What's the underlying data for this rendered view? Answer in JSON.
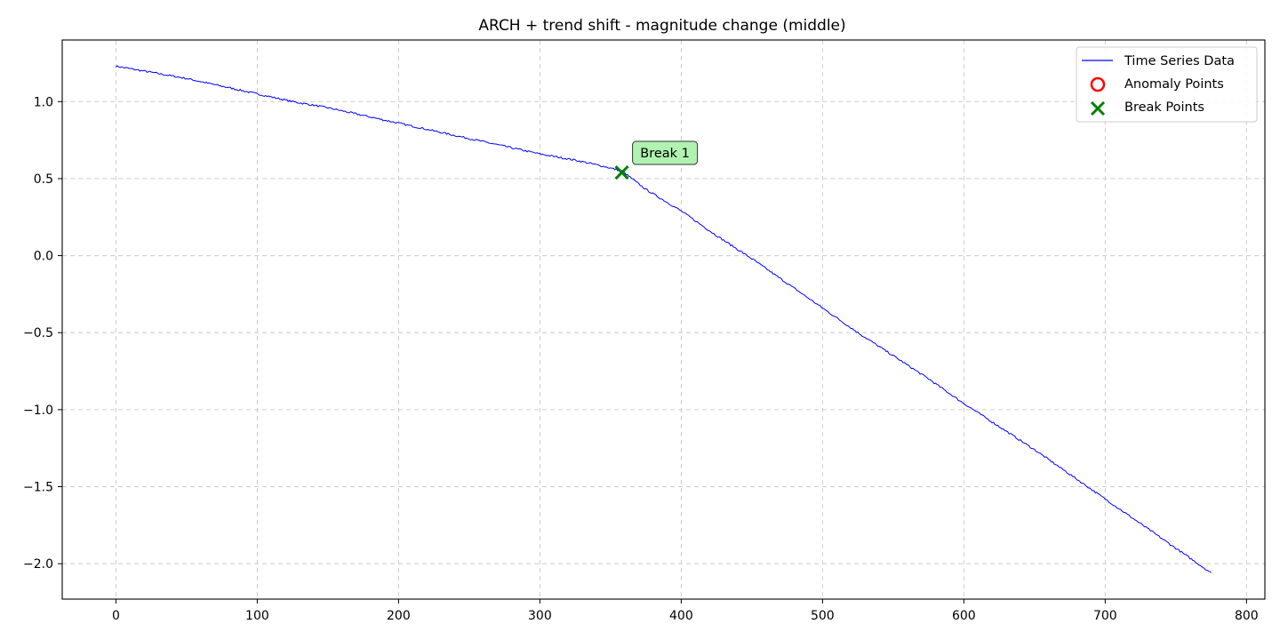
{
  "chart_data": {
    "type": "line",
    "title": "ARCH + trend shift - magnitude change (middle)",
    "xlabel": "",
    "ylabel": "",
    "xlim": [
      -38,
      813
    ],
    "ylim": [
      -2.23,
      1.4
    ],
    "x_ticks": [
      0,
      100,
      200,
      300,
      400,
      500,
      600,
      700,
      800
    ],
    "x_tick_labels": [
      "0",
      "100",
      "200",
      "300",
      "400",
      "500",
      "600",
      "700",
      "800"
    ],
    "y_ticks": [
      1.0,
      0.5,
      0.0,
      -0.5,
      -1.0,
      -1.5,
      -2.0
    ],
    "y_tick_labels": [
      "1.0",
      "0.5",
      "0.0",
      "−0.5",
      "−1.0",
      "−1.5",
      "−2.0"
    ],
    "grid": true,
    "legend_position": "top-right",
    "series": [
      {
        "name": "Time Series Data",
        "color": "#0000ff",
        "x": [
          0,
          25,
          50,
          75,
          100,
          125,
          150,
          175,
          200,
          225,
          250,
          275,
          300,
          325,
          345,
          358,
          375,
          400,
          425,
          450,
          475,
          500,
          525,
          550,
          575,
          600,
          625,
          650,
          675,
          700,
          725,
          750,
          775
        ],
        "y": [
          1.23,
          1.19,
          1.15,
          1.1,
          1.05,
          1.0,
          0.96,
          0.91,
          0.86,
          0.81,
          0.76,
          0.71,
          0.66,
          0.62,
          0.58,
          0.55,
          0.43,
          0.29,
          0.13,
          -0.02,
          -0.18,
          -0.34,
          -0.5,
          -0.65,
          -0.8,
          -0.96,
          -1.11,
          -1.26,
          -1.42,
          -1.58,
          -1.74,
          -1.9,
          -2.06
        ]
      }
    ],
    "anomaly_points": {
      "name": "Anomaly Points",
      "color": "#ff0000",
      "x": [],
      "y": []
    },
    "break_points": {
      "name": "Break Points",
      "color": "#008000",
      "x": [
        358
      ],
      "y": [
        0.54
      ],
      "labels": [
        "Break 1"
      ]
    },
    "annotation_box_color": "#b0f2b0"
  }
}
